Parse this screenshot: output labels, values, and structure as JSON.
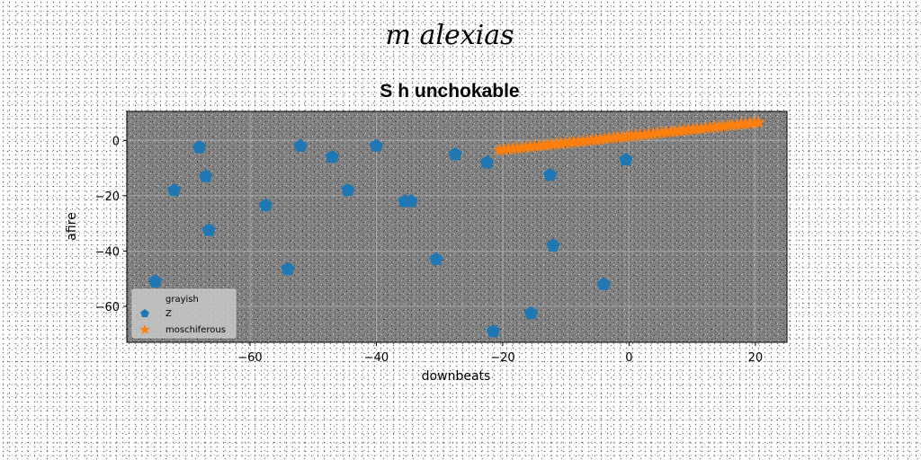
{
  "figure": {
    "suptitle": "m alexias"
  },
  "chart_data": {
    "type": "scatter",
    "title": "S h unchokable",
    "xlabel": "downbeats",
    "ylabel": "afire",
    "xlim": [
      -79.5,
      25
    ],
    "ylim": [
      -73,
      10.5
    ],
    "xticks": [
      -60,
      -40,
      -20,
      0,
      20
    ],
    "yticks": [
      -60,
      -40,
      -20,
      0
    ],
    "grid": true,
    "legend_position": "lower-left",
    "colors": {
      "plot_bg": "#808080",
      "Z": "#1f77b4",
      "moschiferous": "#ff7f0e",
      "grid": "#b0b0b0"
    },
    "series": [
      {
        "name": "grayish",
        "marker": "none",
        "points": []
      },
      {
        "name": "Z",
        "marker": "pentagon",
        "points": [
          [
            -75,
            -51
          ],
          [
            -72,
            -18
          ],
          [
            -68,
            -2.5
          ],
          [
            -67,
            -13
          ],
          [
            -66.5,
            -32.5
          ],
          [
            -57.5,
            -23.5
          ],
          [
            -54,
            -46.5
          ],
          [
            -52,
            -2
          ],
          [
            -47,
            -6
          ],
          [
            -44.5,
            -18
          ],
          [
            -40,
            -2
          ],
          [
            -35.5,
            -22
          ],
          [
            -34.5,
            -22
          ],
          [
            -30.5,
            -43
          ],
          [
            -27.5,
            -5
          ],
          [
            -22.5,
            -8
          ],
          [
            -21.5,
            -69
          ],
          [
            -15.5,
            -62.5
          ],
          [
            -12.5,
            -12.5
          ],
          [
            -12,
            -38
          ],
          [
            -4,
            -52
          ],
          [
            -0.5,
            -7
          ]
        ]
      },
      {
        "name": "moschiferous",
        "marker": "star",
        "points_generator": {
          "x_start": -20.5,
          "x_end": 20.5,
          "count": 60,
          "y_start": -3.5,
          "y_end": 6.5
        }
      }
    ]
  }
}
